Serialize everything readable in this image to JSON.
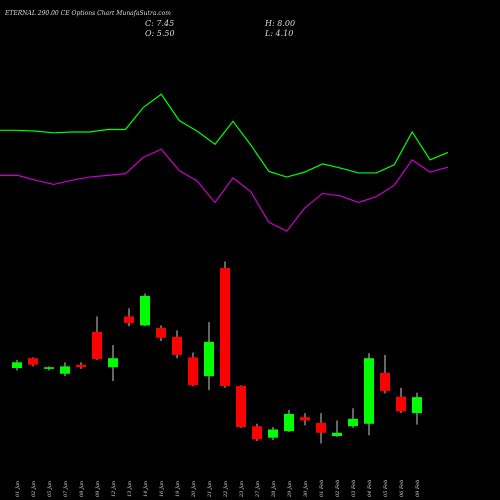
{
  "header": {
    "title": "ETERNAL 290.00 CE Options Chart MunafaSutra.com",
    "close": "C: 7.45",
    "high": "H: 8.00",
    "open": "O: 5.50",
    "low": "L: 4.10"
  },
  "chart_data": {
    "type": "candlestick",
    "categories": [
      "01 Jan",
      "02 Jan",
      "05 Jan",
      "07 Jan",
      "08 Jan",
      "09 Jan",
      "12 Jan",
      "13 Jan",
      "14 Jan",
      "16 Jan",
      "19 Jan",
      "20 Jan",
      "21 Jan",
      "22 Jan",
      "23 Jan",
      "27 Jan",
      "28 Jan",
      "29 Jan",
      "30 Jan",
      "01 Feb",
      "02 Feb",
      "03 Feb",
      "04 Feb",
      "05 Feb",
      "06 Feb",
      "09 Feb"
    ],
    "open": [
      11.0,
      12.2,
      10.9,
      10.3,
      11.4,
      15.4,
      11.1,
      17.3,
      16.2,
      15.9,
      14.8,
      12.3,
      10.0,
      23.2,
      8.8,
      3.9,
      2.5,
      3.3,
      5.0,
      4.3,
      2.7,
      3.9,
      4.2,
      10.4,
      7.5,
      5.5
    ],
    "high": [
      12.0,
      12.3,
      11.2,
      11.7,
      11.7,
      17.3,
      13.8,
      18.3,
      20.1,
      16.2,
      15.6,
      12.9,
      16.6,
      24.0,
      8.9,
      4.2,
      3.8,
      5.9,
      5.5,
      5.5,
      4.6,
      6.1,
      12.8,
      12.6,
      8.6,
      8.0
    ],
    "low": [
      10.7,
      11.2,
      10.7,
      10.0,
      10.9,
      12.0,
      9.4,
      16.1,
      16.1,
      14.3,
      12.2,
      8.8,
      8.3,
      8.6,
      3.7,
      2.1,
      2.2,
      3.2,
      4.0,
      1.8,
      2.6,
      3.7,
      2.8,
      7.9,
      5.5,
      4.1
    ],
    "close": [
      11.7,
      11.4,
      11.1,
      11.2,
      11.1,
      12.1,
      12.2,
      16.5,
      19.8,
      14.7,
      12.6,
      8.9,
      14.2,
      8.8,
      3.8,
      2.3,
      3.5,
      5.4,
      4.6,
      3.1,
      3.1,
      4.8,
      12.2,
      8.2,
      5.7,
      7.45
    ],
    "up_color": "#00ff00",
    "down_color": "#ff0000",
    "lines": [
      {
        "color": "#00ff00",
        "values": [
          40.0,
          40.0,
          39.9,
          39.7,
          39.8,
          39.8,
          40.1,
          40.1,
          42.8,
          44.4,
          41.2,
          39.9,
          38.3,
          41.1,
          38.2,
          35.0,
          34.3,
          34.9,
          35.9,
          35.4,
          34.8,
          34.8,
          35.8,
          39.8,
          36.4,
          37.3
        ]
      },
      {
        "color": "#cc00cc",
        "values": [
          34.5,
          34.5,
          33.9,
          33.4,
          33.9,
          34.3,
          34.5,
          34.7,
          36.7,
          37.7,
          35.1,
          33.8,
          31.2,
          34.2,
          32.5,
          28.8,
          27.7,
          30.5,
          32.3,
          32.0,
          31.2,
          31.9,
          33.3,
          36.4,
          34.9,
          35.5
        ]
      }
    ],
    "ylim": [
      -5.1,
      55.9
    ]
  }
}
